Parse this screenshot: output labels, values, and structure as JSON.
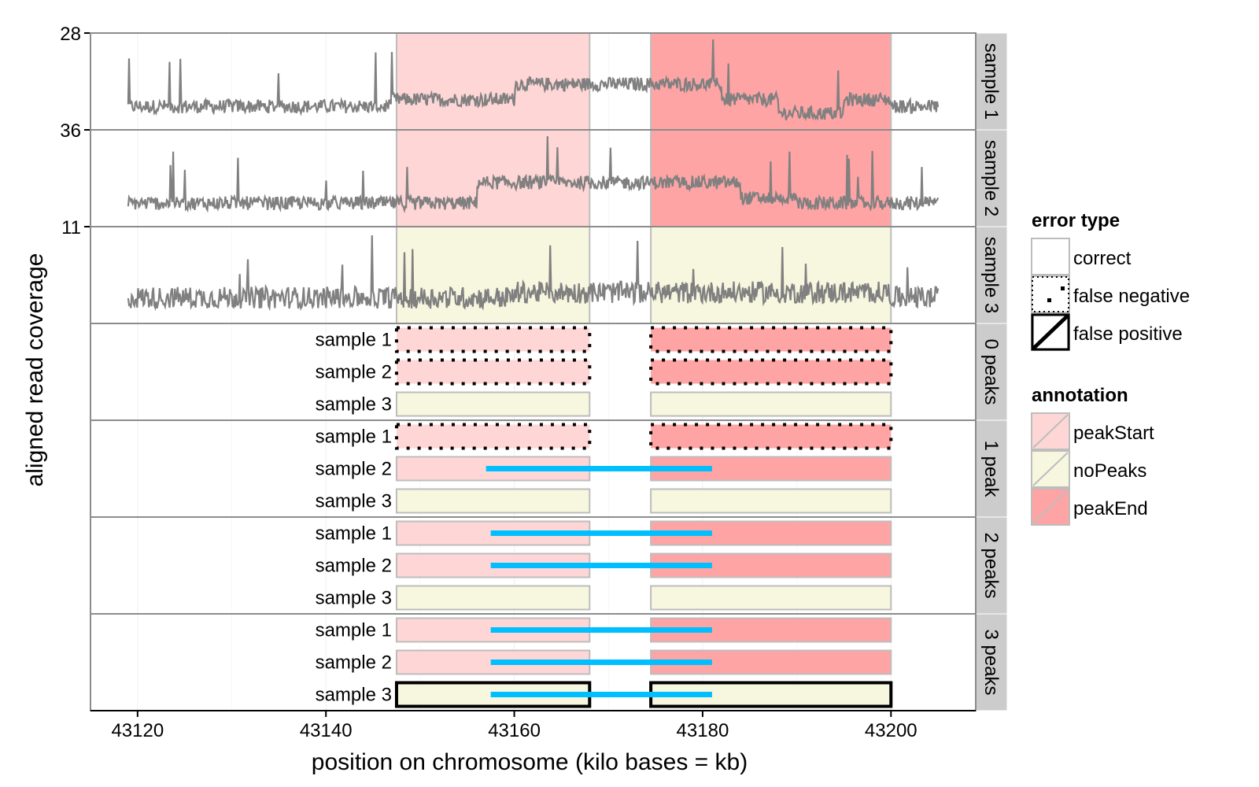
{
  "chart_data": {
    "type": "line",
    "xlabel": "position on chromosome (kilo bases = kb)",
    "ylabel": "aligned read coverage",
    "xlim": [
      43115,
      43209
    ],
    "x_ticks": [
      43120,
      43140,
      43160,
      43180,
      43200
    ],
    "coverage_panels": [
      {
        "name": "sample 1",
        "ymax": 28,
        "ymax_label": "28"
      },
      {
        "name": "sample 2",
        "ymax": 36,
        "ymax_label": "36"
      },
      {
        "name": "sample 3",
        "ymax": 11,
        "ymax_label": "11"
      }
    ],
    "coverage_x_range": [
      43119,
      43205
    ],
    "annotation_regions": {
      "sample 1": [
        {
          "start": 43147.5,
          "end": 43168,
          "annotation": "peakStart"
        },
        {
          "start": 43174.5,
          "end": 43200,
          "annotation": "peakEnd"
        }
      ],
      "sample 2": [
        {
          "start": 43147.5,
          "end": 43168,
          "annotation": "peakStart"
        },
        {
          "start": 43174.5,
          "end": 43200,
          "annotation": "peakEnd"
        }
      ],
      "sample 3": [
        {
          "start": 43147.5,
          "end": 43168,
          "annotation": "noPeaks"
        },
        {
          "start": 43174.5,
          "end": 43200,
          "annotation": "noPeaks"
        }
      ]
    },
    "peak_model_panels": [
      {
        "name": "0 peaks",
        "rows": [
          {
            "sample": "sample 1",
            "errors": [
              "false negative",
              "false negative"
            ],
            "peak": null
          },
          {
            "sample": "sample 2",
            "errors": [
              "false negative",
              "false negative"
            ],
            "peak": null
          },
          {
            "sample": "sample 3",
            "errors": [
              "correct",
              "correct"
            ],
            "peak": null
          }
        ]
      },
      {
        "name": "1 peak",
        "rows": [
          {
            "sample": "sample 1",
            "errors": [
              "false negative",
              "false negative"
            ],
            "peak": null
          },
          {
            "sample": "sample 2",
            "errors": [
              "correct",
              "correct"
            ],
            "peak": [
              43157,
              43181
            ]
          },
          {
            "sample": "sample 3",
            "errors": [
              "correct",
              "correct"
            ],
            "peak": null
          }
        ]
      },
      {
        "name": "2 peaks",
        "rows": [
          {
            "sample": "sample 1",
            "errors": [
              "correct",
              "correct"
            ],
            "peak": [
              43157.5,
              43181
            ]
          },
          {
            "sample": "sample 2",
            "errors": [
              "correct",
              "correct"
            ],
            "peak": [
              43157.5,
              43181
            ]
          },
          {
            "sample": "sample 3",
            "errors": [
              "correct",
              "correct"
            ],
            "peak": null
          }
        ]
      },
      {
        "name": "3 peaks",
        "rows": [
          {
            "sample": "sample 1",
            "errors": [
              "correct",
              "correct"
            ],
            "peak": [
              43157.5,
              43181
            ]
          },
          {
            "sample": "sample 2",
            "errors": [
              "correct",
              "correct"
            ],
            "peak": [
              43157.5,
              43181
            ]
          },
          {
            "sample": "sample 3",
            "errors": [
              "false positive",
              "false positive"
            ],
            "peak": [
              43157.5,
              43181
            ]
          }
        ]
      }
    ],
    "legend": {
      "error_title": "error type",
      "error_items": [
        "correct",
        "false negative",
        "false positive"
      ],
      "annotation_title": "annotation",
      "annotation_items": [
        "peakStart",
        "noPeaks",
        "peakEnd"
      ]
    }
  },
  "colors": {
    "peakStart": "#FFD6D6",
    "noPeaks": "#F7F6DF",
    "peakEnd": "#FFA4A4",
    "peak_segment": "#00BFFF",
    "coverage_line": "#808080",
    "strip": "#CCCCCC",
    "grid": "#F0F0F0"
  }
}
